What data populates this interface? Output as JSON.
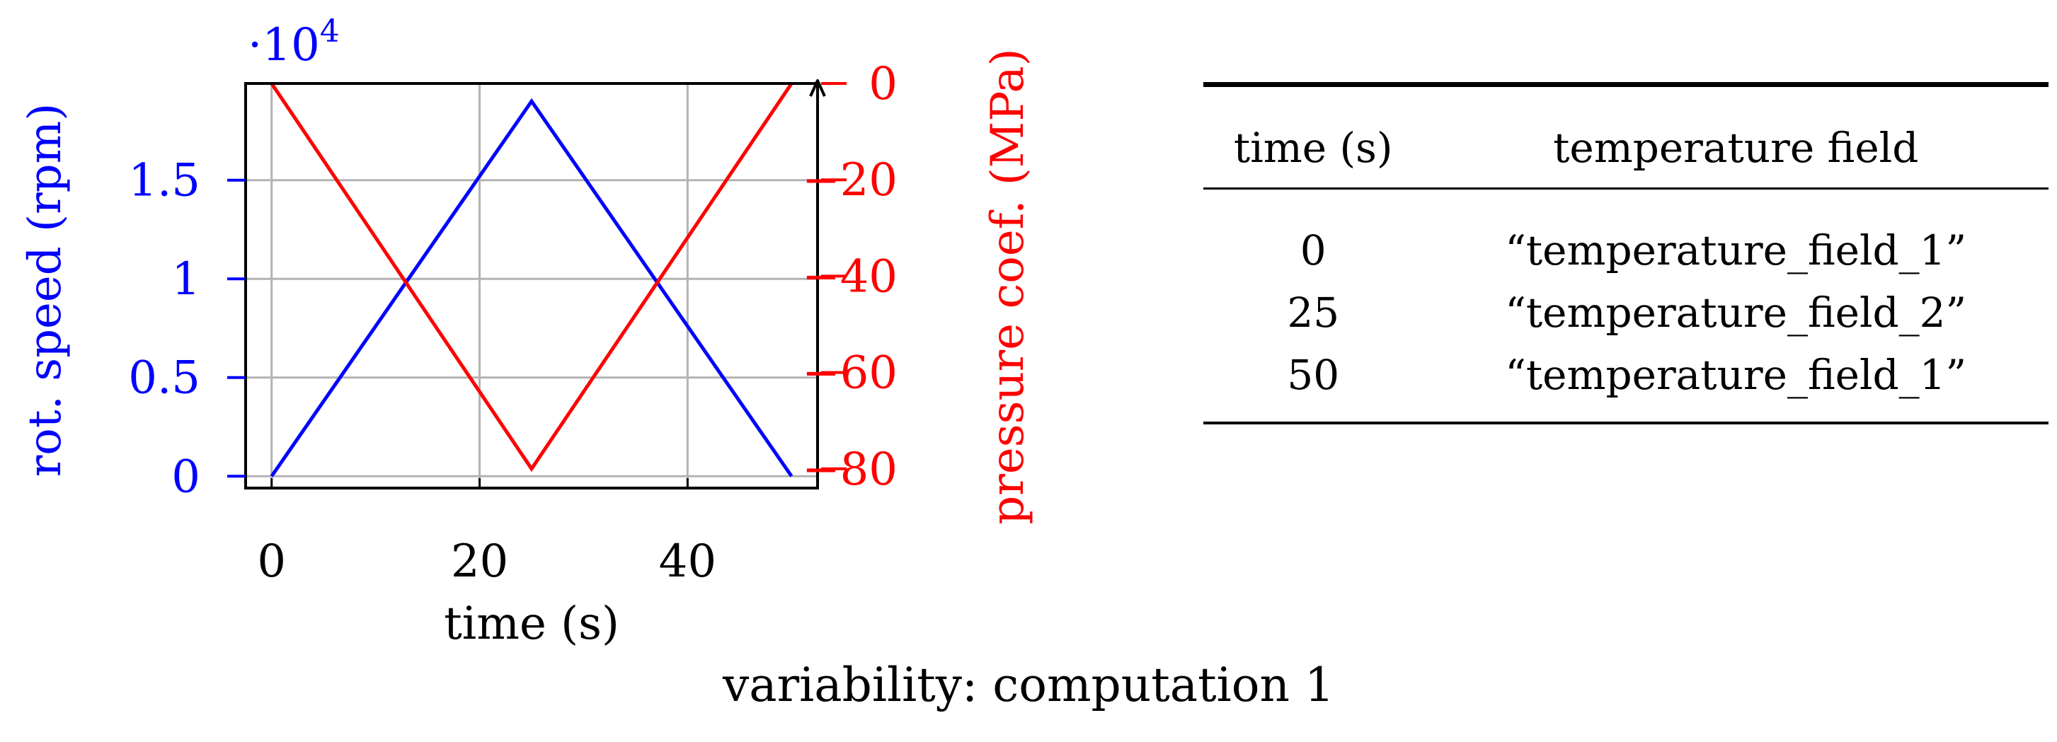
{
  "chart_data": {
    "type": "line",
    "xlabel": "time (s)",
    "x_ticks": [
      0,
      20,
      40
    ],
    "xlim": [
      -2.5,
      52.5
    ],
    "left_axis": {
      "label": "rot. speed (rpm)",
      "multiplier": "·10",
      "multiplier_exp": "4",
      "ticks": [
        0,
        0.5,
        1,
        1.5
      ],
      "tick_labels": [
        "0",
        "0.5",
        "1",
        "1.5"
      ],
      "ylim": [
        -0.06,
        1.99
      ],
      "color": "#0000ff"
    },
    "right_axis": {
      "label": "pressure coef. (MPa)",
      "ticks": [
        0,
        -20,
        -40,
        -60,
        -80
      ],
      "tick_labels": [
        "0",
        "−20",
        "−40",
        "−60",
        "−80"
      ],
      "ylim": [
        -84,
        0
      ],
      "color": "#ff0000"
    },
    "series": [
      {
        "axis": "left",
        "color": "#0000ff",
        "x": [
          0,
          25,
          50
        ],
        "y": [
          0,
          1.9,
          0
        ]
      },
      {
        "axis": "right",
        "color": "#ff0000",
        "x": [
          0,
          25,
          50
        ],
        "y": [
          0,
          -80,
          0
        ]
      }
    ],
    "grid": true
  },
  "table": {
    "headers": [
      "time (s)",
      "temperature field"
    ],
    "rows": [
      [
        "0",
        "“temperature_field_1”"
      ],
      [
        "25",
        "“temperature_field_2”"
      ],
      [
        "50",
        "“temperature_field_1”"
      ]
    ]
  },
  "caption": "variability: computation 1"
}
